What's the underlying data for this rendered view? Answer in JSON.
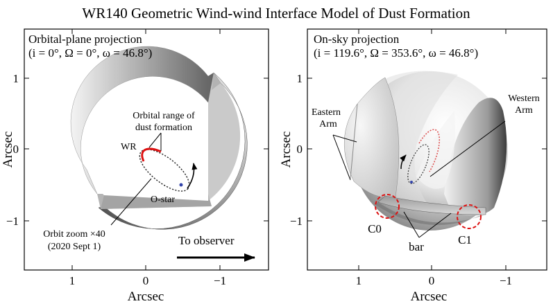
{
  "title": "WR140 Geometric Wind-wind Interface Model of Dust Formation",
  "panels": [
    {
      "name": "orbital-plane",
      "title_line1": "Orbital-plane projection",
      "title_line2": "(i = 0°, Ω = 0°, ω = 46.8°)",
      "xlabel": "Arcsec",
      "ylabel": "Arcsec",
      "x_ticks": [
        "1",
        "0",
        "−1"
      ],
      "y_ticks": [
        "1",
        "0",
        "−1"
      ],
      "labels": {
        "orbital_range": [
          "Orbital range of",
          "dust formation"
        ],
        "wr": "WR",
        "o_star": "O-star",
        "orbit_zoom": [
          "Orbit zoom ×40",
          "(2020 Sept 1)"
        ],
        "to_observer": "To observer"
      }
    },
    {
      "name": "on-sky",
      "title_line1": "On-sky projection",
      "title_line2": "(i = 119.6°, Ω = 353.6°, ω = 46.8°)",
      "xlabel": "Arcsec",
      "ylabel": "Arcsec",
      "x_ticks": [
        "1",
        "0",
        "−1"
      ],
      "y_ticks": [
        "1",
        "0",
        "−1"
      ],
      "labels": {
        "eastern_arm": [
          "Eastern",
          "Arm"
        ],
        "western_arm": [
          "Western",
          "Arm"
        ],
        "c0": "C0",
        "c1": "C1",
        "bar": "bar"
      }
    }
  ],
  "colors": {
    "dust_formation_arc": "#dd1111",
    "marker_circles": "#dd1111",
    "o_star": "#3344aa"
  }
}
